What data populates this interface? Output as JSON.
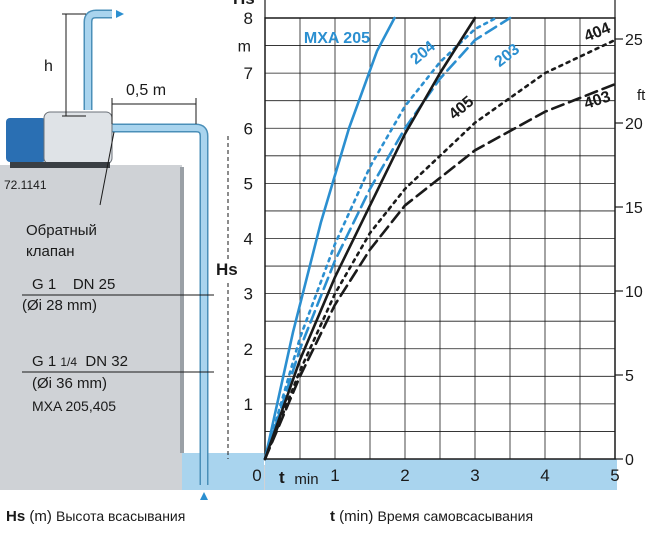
{
  "chart_data": {
    "type": "line",
    "x_unit_label": "t",
    "x_unit": "min",
    "y_corner_label": "Hs",
    "y_unit": "m",
    "y2_unit": "ft",
    "xlim": [
      0,
      5
    ],
    "ylim": [
      0,
      8
    ],
    "y2lim": [
      0,
      26.25
    ],
    "x_ticks": [
      0,
      1,
      2,
      3,
      4,
      5
    ],
    "y_ticks": [
      1,
      2,
      3,
      4,
      5,
      6,
      7,
      8
    ],
    "y2_ticks": [
      0,
      5,
      10,
      15,
      20,
      25
    ],
    "grid": true,
    "series": [
      {
        "name": "MXA 205",
        "color": "#2b8fd0",
        "dash": "solid",
        "x": [
          0,
          0.4,
          0.8,
          1.2,
          1.6,
          1.85
        ],
        "y": [
          0,
          2.3,
          4.3,
          6.0,
          7.4,
          8.0
        ]
      },
      {
        "name": "204",
        "color": "#2b8fd0",
        "dash": "dotted",
        "x": [
          0,
          0.5,
          1.0,
          1.5,
          2.0,
          2.5,
          3.0,
          3.3
        ],
        "y": [
          0,
          2.2,
          3.9,
          5.3,
          6.4,
          7.2,
          7.8,
          8.0
        ]
      },
      {
        "name": "203",
        "color": "#2b8fd0",
        "dash": "dashed",
        "x": [
          0,
          0.5,
          1.0,
          1.5,
          2.0,
          2.5,
          3.0,
          3.5
        ],
        "y": [
          0,
          2.0,
          3.6,
          4.9,
          6.0,
          6.9,
          7.6,
          8.0
        ]
      },
      {
        "name": "405",
        "color": "#1a1a1a",
        "dash": "solid",
        "x": [
          0,
          0.5,
          1.0,
          1.5,
          2.0,
          2.5,
          3.0
        ],
        "y": [
          0,
          1.8,
          3.3,
          4.6,
          5.9,
          7.0,
          8.0
        ]
      },
      {
        "name": "404",
        "color": "#1a1a1a",
        "dash": "dotted",
        "x": [
          0,
          0.5,
          1.0,
          1.5,
          2.0,
          3.0,
          4.0,
          5.0
        ],
        "y": [
          0,
          1.6,
          3.0,
          4.1,
          4.9,
          6.1,
          7.0,
          7.6
        ]
      },
      {
        "name": "403",
        "color": "#1a1a1a",
        "dash": "dashed",
        "x": [
          0,
          0.5,
          1.0,
          1.5,
          2.0,
          3.0,
          4.0,
          5.0
        ],
        "y": [
          0,
          1.5,
          2.8,
          3.8,
          4.6,
          5.6,
          6.3,
          6.8
        ]
      }
    ]
  },
  "diagram": {
    "code": "72.1141",
    "h_label": "h",
    "distance_label": "0,5 m",
    "valve_label_line1": "Обратный",
    "valve_label_line2": "клапан",
    "pipe1_label": "G 1    DN 25",
    "pipe1_inner": "(Øi 28 mm)",
    "pipe2_label_a": "G 1",
    "pipe2_label_b": "1/4",
    "pipe2_label_c": "DN 32",
    "pipe2_inner": "(Øi 36 mm)",
    "pipe2_models": "MXA 205,405",
    "hs_label": "Hs"
  },
  "footer": {
    "hs_abbr": "Hs",
    "hs_unit": "(m)",
    "hs_desc": "Высота всасывания",
    "t_abbr": "t",
    "t_unit": "(min)",
    "t_desc": "Время самовсасывания"
  },
  "colors": {
    "accent": "#2b8fd0",
    "water": "#a9d4ee",
    "wall": "#cfd2d6",
    "dark": "#1a1a1a"
  }
}
